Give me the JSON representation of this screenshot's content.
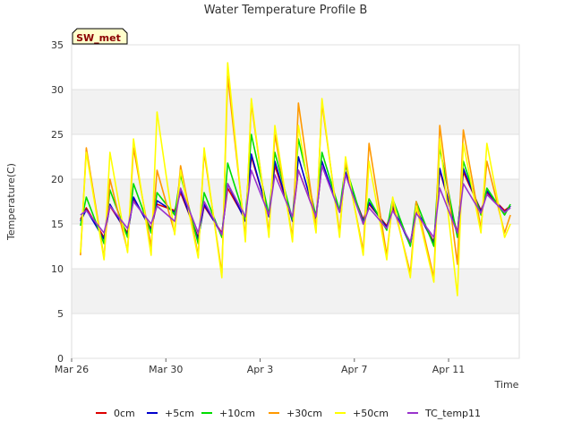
{
  "chart_data": {
    "type": "line",
    "title": "Water Temperature Profile B",
    "xlabel": "Time",
    "ylabel": "Temperature(C)",
    "ylim": [
      0,
      35
    ],
    "yticks": [
      0,
      5,
      10,
      15,
      20,
      25,
      30,
      35
    ],
    "xlim": [
      "2024-03-26",
      "2024-04-14"
    ],
    "xticks": [
      {
        "label": "Mar 26",
        "date": "2024-03-26"
      },
      {
        "label": "Mar 30",
        "date": "2024-03-30"
      },
      {
        "label": "Apr 3",
        "date": "2024-04-03"
      },
      {
        "label": "Apr 7",
        "date": "2024-04-07"
      },
      {
        "label": "Apr 11",
        "date": "2024-04-11"
      }
    ],
    "grid": "horizontal alternating bands",
    "legend": "bottom",
    "badge": "SW_met",
    "x": [
      "2024-03-26 09:00",
      "2024-03-26 15:00",
      "2024-03-27 09:00",
      "2024-03-27 15:00",
      "2024-03-28 09:00",
      "2024-03-28 15:00",
      "2024-03-29 09:00",
      "2024-03-29 15:00",
      "2024-03-30 09:00",
      "2024-03-30 15:00",
      "2024-03-31 09:00",
      "2024-03-31 15:00",
      "2024-04-01 09:00",
      "2024-04-01 15:00",
      "2024-04-02 09:00",
      "2024-04-02 15:00",
      "2024-04-03 09:00",
      "2024-04-03 15:00",
      "2024-04-04 09:00",
      "2024-04-04 15:00",
      "2024-04-05 09:00",
      "2024-04-05 15:00",
      "2024-04-06 09:00",
      "2024-04-06 15:00",
      "2024-04-07 09:00",
      "2024-04-07 15:00",
      "2024-04-08 09:00",
      "2024-04-08 15:00",
      "2024-04-09 09:00",
      "2024-04-09 15:00",
      "2024-04-10 09:00",
      "2024-04-10 15:00",
      "2024-04-11 09:00",
      "2024-04-11 15:00",
      "2024-04-12 09:00",
      "2024-04-12 15:00",
      "2024-04-13 09:00",
      "2024-04-13 15:00"
    ],
    "series": [
      {
        "name": "0cm",
        "color": "#dd0000",
        "values": [
          15.5,
          16.8,
          13.5,
          17.0,
          14.0,
          17.8,
          14.5,
          17.2,
          16.5,
          18.5,
          13.5,
          17.0,
          14.0,
          19.0,
          15.5,
          22.5,
          16.0,
          21.5,
          15.5,
          21.0,
          15.8,
          21.5,
          16.5,
          20.5,
          15.5,
          17.2,
          14.8,
          16.8,
          12.8,
          16.5,
          13.0,
          21.0,
          14.0,
          20.8,
          16.5,
          18.5,
          16.5,
          17.0
        ]
      },
      {
        "name": "+5cm",
        "color": "#0000cc",
        "values": [
          15.3,
          16.6,
          13.3,
          17.2,
          13.8,
          18.0,
          14.3,
          17.6,
          16.3,
          18.8,
          13.3,
          17.2,
          13.8,
          19.5,
          15.3,
          22.8,
          15.8,
          22.0,
          15.3,
          22.5,
          15.6,
          22.0,
          16.3,
          20.8,
          15.3,
          17.4,
          14.6,
          17.0,
          12.6,
          16.7,
          12.8,
          21.2,
          13.8,
          21.2,
          16.3,
          18.7,
          16.3,
          17.0
        ]
      },
      {
        "name": "+10cm",
        "color": "#00dd00",
        "values": [
          14.8,
          18.0,
          12.8,
          18.8,
          13.5,
          19.5,
          14.0,
          18.5,
          16.0,
          20.5,
          12.8,
          18.5,
          13.5,
          21.8,
          15.5,
          25.0,
          16.0,
          23.0,
          15.5,
          24.5,
          15.8,
          23.0,
          16.5,
          21.5,
          15.0,
          17.8,
          14.3,
          17.8,
          12.5,
          17.5,
          12.5,
          23.5,
          13.5,
          22.0,
          16.0,
          19.0,
          16.0,
          17.2
        ]
      },
      {
        "name": "+30cm",
        "color": "#ff9900",
        "values": [
          11.5,
          23.5,
          11.2,
          20.0,
          12.0,
          23.5,
          12.5,
          21.0,
          14.0,
          21.5,
          11.5,
          23.0,
          9.5,
          31.5,
          13.5,
          28.5,
          14.0,
          25.0,
          13.5,
          28.5,
          14.5,
          28.5,
          14.0,
          22.0,
          12.0,
          24.0,
          11.5,
          17.5,
          9.5,
          17.5,
          9.0,
          26.0,
          10.5,
          25.5,
          14.5,
          22.0,
          14.0,
          16.0
        ]
      },
      {
        "name": "+50cm",
        "color": "#ffff00",
        "values": [
          11.8,
          23.0,
          11.0,
          23.0,
          11.8,
          24.5,
          11.5,
          27.5,
          13.8,
          21.0,
          11.2,
          23.5,
          9.0,
          33.0,
          13.0,
          29.0,
          13.5,
          26.0,
          13.0,
          26.0,
          14.0,
          29.0,
          13.5,
          22.5,
          11.5,
          22.0,
          11.0,
          18.0,
          9.0,
          17.0,
          8.5,
          24.5,
          7.0,
          24.0,
          14.0,
          24.0,
          13.5,
          15.0
        ]
      },
      {
        "name": "TC_temp11",
        "color": "#9933cc",
        "values": [
          16.0,
          16.5,
          14.0,
          17.0,
          14.5,
          17.5,
          15.0,
          17.0,
          15.3,
          19.0,
          14.0,
          17.5,
          13.8,
          19.5,
          15.8,
          21.0,
          16.0,
          20.5,
          15.8,
          21.0,
          15.8,
          21.5,
          16.3,
          20.5,
          15.0,
          16.8,
          14.5,
          16.5,
          13.0,
          16.2,
          13.5,
          19.0,
          14.0,
          19.5,
          16.2,
          18.3,
          16.3,
          16.8
        ]
      }
    ]
  }
}
